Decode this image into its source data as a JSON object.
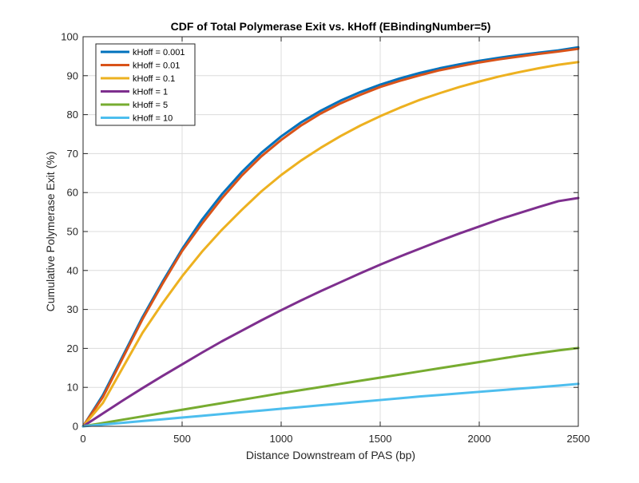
{
  "chart_data": {
    "type": "line",
    "title": "CDF of Total Polymerase Exit vs. kHoff (EBindingNumber=5)",
    "xlabel": "Distance Downstream of PAS (bp)",
    "ylabel": "Cumulative Polymerase Exit (%)",
    "xlim": [
      0,
      2500
    ],
    "ylim": [
      0,
      100
    ],
    "xticks": [
      0,
      500,
      1000,
      1500,
      2000,
      2500
    ],
    "yticks": [
      0,
      10,
      20,
      30,
      40,
      50,
      60,
      70,
      80,
      90,
      100
    ],
    "grid": true,
    "legend_position": "top-left",
    "x": [
      0,
      100,
      200,
      300,
      400,
      500,
      600,
      700,
      800,
      900,
      1000,
      1100,
      1200,
      1300,
      1400,
      1500,
      1600,
      1700,
      1800,
      1900,
      2000,
      2100,
      2200,
      2300,
      2400,
      2500
    ],
    "series": [
      {
        "name": "kHoff = 0.001",
        "color": "#0072BD",
        "values": [
          0,
          8,
          18,
          28,
          37,
          45.5,
          53,
          59.5,
          65.2,
          70.2,
          74.4,
          78,
          81,
          83.6,
          85.8,
          87.7,
          89.3,
          90.7,
          91.9,
          92.9,
          93.8,
          94.6,
          95.3,
          95.9,
          96.5,
          97.3
        ]
      },
      {
        "name": "kHoff = 0.01",
        "color": "#D95319",
        "values": [
          0,
          7.5,
          17.5,
          27.5,
          36.5,
          45,
          52,
          58.5,
          64.3,
          69.3,
          73.5,
          77.2,
          80.3,
          82.9,
          85.1,
          87.1,
          88.7,
          90.1,
          91.4,
          92.4,
          93.4,
          94.2,
          94.9,
          95.6,
          96.2,
          96.9
        ]
      },
      {
        "name": "kHoff = 0.1",
        "color": "#EDB120",
        "values": [
          0,
          6,
          15,
          24,
          31.5,
          38.5,
          44.8,
          50.4,
          55.5,
          60.3,
          64.5,
          68.2,
          71.5,
          74.5,
          77.2,
          79.6,
          81.8,
          83.8,
          85.5,
          87.1,
          88.5,
          89.8,
          90.9,
          91.9,
          92.8,
          93.5
        ]
      },
      {
        "name": "kHoff = 1",
        "color": "#7E2F8E",
        "values": [
          0,
          3.3,
          6.6,
          9.8,
          12.9,
          15.9,
          18.9,
          21.8,
          24.5,
          27.2,
          29.8,
          32.3,
          34.7,
          37,
          39.3,
          41.5,
          43.6,
          45.6,
          47.6,
          49.5,
          51.3,
          53.1,
          54.7,
          56.3,
          57.8,
          58.6
        ]
      },
      {
        "name": "kHoff = 5",
        "color": "#77AC30",
        "values": [
          0,
          0.85,
          1.7,
          2.55,
          3.4,
          4.25,
          5.1,
          5.95,
          6.8,
          7.65,
          8.5,
          9.3,
          10.1,
          10.9,
          11.7,
          12.5,
          13.3,
          14.1,
          14.9,
          15.7,
          16.5,
          17.3,
          18.1,
          18.8,
          19.5,
          20.1
        ]
      },
      {
        "name": "kHoff = 10",
        "color": "#4DBEEE",
        "values": [
          0,
          0.45,
          0.9,
          1.35,
          1.8,
          2.25,
          2.7,
          3.15,
          3.6,
          4.05,
          4.5,
          4.95,
          5.4,
          5.85,
          6.3,
          6.75,
          7.2,
          7.65,
          8.05,
          8.45,
          8.85,
          9.25,
          9.65,
          10.05,
          10.45,
          10.9
        ]
      }
    ]
  }
}
